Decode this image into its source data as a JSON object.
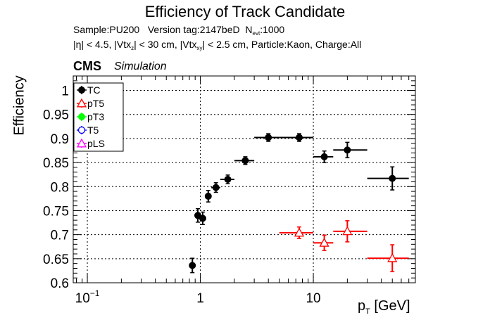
{
  "header": {
    "title": "Efficiency of Track Candidate",
    "sample": "Sample:PU200",
    "version": "Version tag:2147beD",
    "nevt_prefix": "N",
    "nevt_sub": "evt",
    "nevt_value": ":1000",
    "cuts": {
      "eta": "|η| < 4.5, |Vtx",
      "vtxz_sub": "z",
      "vtxz": "| < 30 cm, |Vtx",
      "vtxxy_sub": "xy",
      "rest": "| < 2.5 cm, Particle:Kaon, Charge:All"
    },
    "cms": "CMS",
    "simulation": "Simulation"
  },
  "chart_data": {
    "type": "scatter",
    "x_scale": "log",
    "xlim": [
      0.075,
      80
    ],
    "ylim": [
      0.6,
      1.03
    ],
    "xlabel_main": "p",
    "xlabel_sub": "T",
    "xlabel_unit": " [GeV]",
    "ylabel": "Efficiency",
    "grid": true,
    "x_ticks": [
      {
        "value": 0.1,
        "label": "10",
        "sup": "−1"
      },
      {
        "value": 1,
        "label": "1",
        "sup": ""
      },
      {
        "value": 10,
        "label": "10",
        "sup": ""
      }
    ],
    "y_ticks": [
      {
        "value": 0.6,
        "label": "0.6"
      },
      {
        "value": 0.65,
        "label": "0.65"
      },
      {
        "value": 0.7,
        "label": "0.7"
      },
      {
        "value": 0.75,
        "label": "0.75"
      },
      {
        "value": 0.8,
        "label": "0.8"
      },
      {
        "value": 0.85,
        "label": "0.85"
      },
      {
        "value": 0.9,
        "label": "0.9"
      },
      {
        "value": 0.95,
        "label": "0.95"
      },
      {
        "value": 1,
        "label": "1"
      }
    ],
    "legend": {
      "placement": "top-left",
      "entries": [
        {
          "name": "TC",
          "color": "#000000",
          "marker": "filled-circle"
        },
        {
          "name": "pT5",
          "color": "#ff0000",
          "marker": "open-triangle"
        },
        {
          "name": "pT3",
          "color": "#00ff00",
          "marker": "filled-circle"
        },
        {
          "name": "T5",
          "color": "#0000ff",
          "marker": "open-circle"
        },
        {
          "name": "pLS",
          "color": "#ff00ff",
          "marker": "open-triangle"
        }
      ]
    },
    "series": [
      {
        "name": "TC",
        "color": "#000000",
        "marker": "filled-circle",
        "points": [
          {
            "x": 0.85,
            "xlo": 0.8,
            "xhi": 0.9,
            "y": 0.636,
            "err": 0.015
          },
          {
            "x": 0.95,
            "xlo": 0.9,
            "xhi": 1.0,
            "y": 0.74,
            "err": 0.014
          },
          {
            "x": 1.05,
            "xlo": 1.0,
            "xhi": 1.1,
            "y": 0.734,
            "err": 0.013
          },
          {
            "x": 1.175,
            "xlo": 1.1,
            "xhi": 1.25,
            "y": 0.78,
            "err": 0.012
          },
          {
            "x": 1.375,
            "xlo": 1.25,
            "xhi": 1.5,
            "y": 0.798,
            "err": 0.01
          },
          {
            "x": 1.75,
            "xlo": 1.5,
            "xhi": 2.0,
            "y": 0.815,
            "err": 0.009
          },
          {
            "x": 2.5,
            "xlo": 2.0,
            "xhi": 3.0,
            "y": 0.854,
            "err": 0.008
          },
          {
            "x": 4.0,
            "xlo": 3.0,
            "xhi": 5.0,
            "y": 0.902,
            "err": 0.008
          },
          {
            "x": 7.5,
            "xlo": 5.0,
            "xhi": 10.0,
            "y": 0.902,
            "err": 0.008
          },
          {
            "x": 12.5,
            "xlo": 10.0,
            "xhi": 15.0,
            "y": 0.862,
            "err": 0.012
          },
          {
            "x": 20.0,
            "xlo": 15.0,
            "xhi": 30.0,
            "y": 0.876,
            "err": 0.016
          },
          {
            "x": 50.0,
            "xlo": 30.0,
            "xhi": 70.0,
            "y": 0.817,
            "err": 0.024
          }
        ]
      },
      {
        "name": "pT5",
        "color": "#ff0000",
        "marker": "open-triangle",
        "points": [
          {
            "x": 7.5,
            "xlo": 5.0,
            "xhi": 10.0,
            "y": 0.704,
            "err": 0.012
          },
          {
            "x": 12.5,
            "xlo": 10.0,
            "xhi": 15.0,
            "y": 0.683,
            "err": 0.016
          },
          {
            "x": 20.0,
            "xlo": 15.0,
            "xhi": 30.0,
            "y": 0.707,
            "err": 0.022
          },
          {
            "x": 50.0,
            "xlo": 30.0,
            "xhi": 70.0,
            "y": 0.651,
            "err": 0.028
          }
        ]
      },
      {
        "name": "pT3",
        "color": "#00ff00",
        "marker": "filled-circle",
        "points": []
      },
      {
        "name": "T5",
        "color": "#0000ff",
        "marker": "open-circle",
        "points": []
      },
      {
        "name": "pLS",
        "color": "#ff00ff",
        "marker": "open-triangle",
        "points": []
      }
    ]
  }
}
